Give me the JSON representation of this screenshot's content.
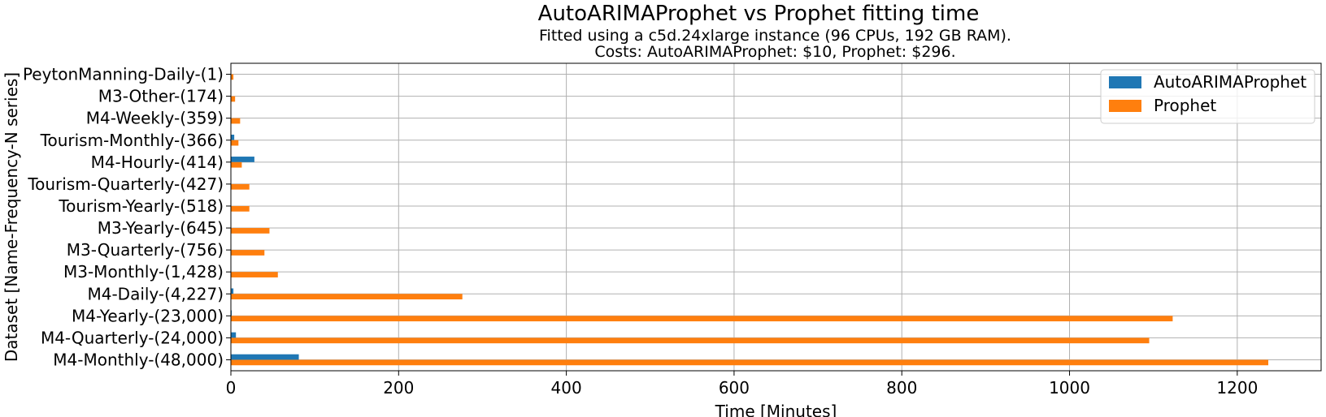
{
  "title": "AutoARIMAProphet vs Prophet fitting time",
  "subtitle_line1": "Fitted using a c5d.24xlarge instance (96 CPUs, 192 GB RAM).",
  "subtitle_line2": "Costs: AutoARIMAProphet: $10, Prophet: $296.",
  "chart_data": {
    "type": "bar",
    "orientation": "horizontal",
    "title": "AutoARIMAProphet vs Prophet fitting time",
    "xlabel": "Time [Minutes]",
    "ylabel": "Dataset [Name-Frequency-N series]",
    "xlim": [
      0,
      1300
    ],
    "xticks": [
      0,
      200,
      400,
      600,
      800,
      1000,
      1200
    ],
    "grid": true,
    "legend_position": "top-right",
    "categories": [
      "M4-Monthly-(48,000)",
      "M4-Quarterly-(24,000)",
      "M4-Yearly-(23,000)",
      "M4-Daily-(4,227)",
      "M3-Monthly-(1,428)",
      "M3-Quarterly-(756)",
      "M3-Yearly-(645)",
      "Tourism-Yearly-(518)",
      "Tourism-Quarterly-(427)",
      "M4-Hourly-(414)",
      "Tourism-Monthly-(366)",
      "M4-Weekly-(359)",
      "M3-Other-(174)",
      "PeytonManning-Daily-(1)"
    ],
    "series": [
      {
        "name": "AutoARIMAProphet",
        "color": "#1f77b4",
        "values": [
          81,
          6,
          1,
          3,
          0.5,
          0.5,
          0.5,
          0.5,
          0.5,
          28,
          4,
          0.5,
          0.5,
          0.5
        ]
      },
      {
        "name": "Prophet",
        "color": "#ff7f0e",
        "values": [
          1237,
          1095,
          1123,
          276,
          56,
          40,
          46,
          22,
          22,
          13,
          9,
          11,
          5,
          3
        ]
      }
    ]
  }
}
